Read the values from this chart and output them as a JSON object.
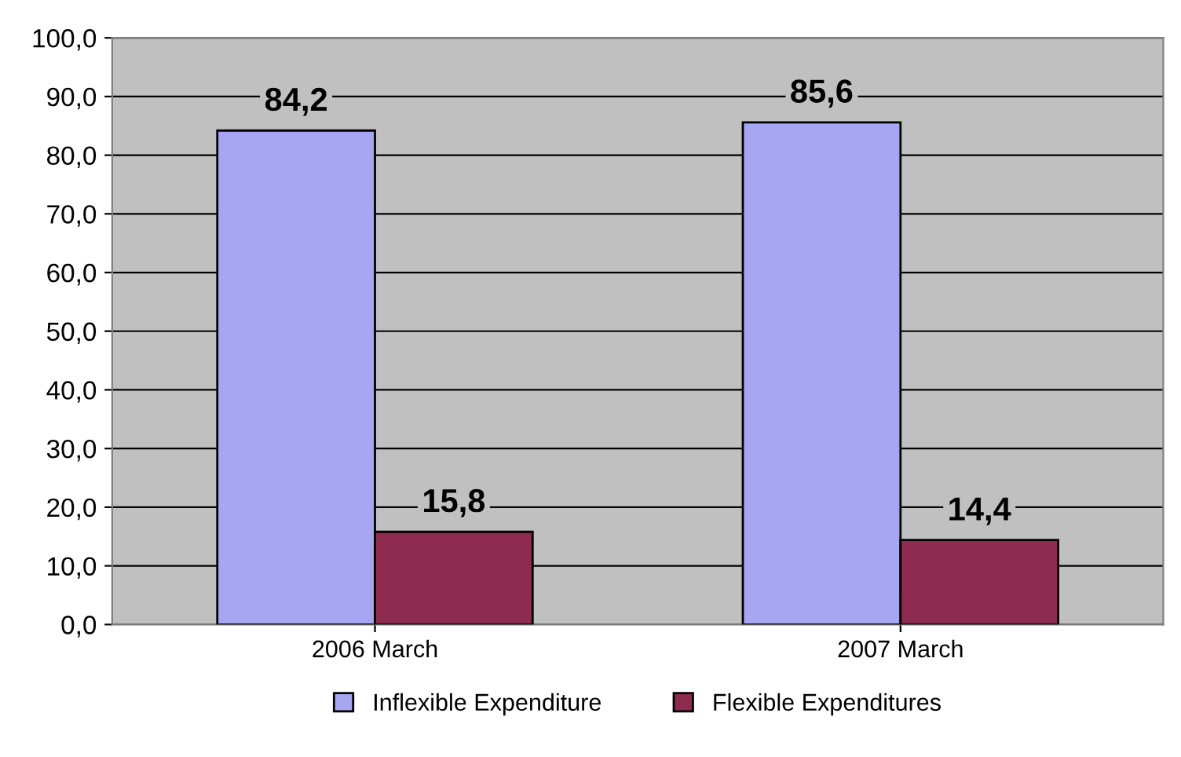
{
  "chart_data": {
    "type": "bar",
    "categories": [
      "2006 March",
      "2007 March"
    ],
    "series": [
      {
        "name": "Inflexible Expenditure",
        "color": "#a6a6f2",
        "values": [
          84.2,
          85.6
        ],
        "value_labels": [
          "84,2",
          "85,6"
        ]
      },
      {
        "name": "Flexible Expenditures",
        "color": "#8e2c50",
        "values": [
          15.8,
          14.4
        ],
        "value_labels": [
          "15,8",
          "14,4"
        ]
      }
    ],
    "ylim": [
      0,
      100
    ],
    "yticks": [
      {
        "value": 0,
        "label": "0,0"
      },
      {
        "value": 10,
        "label": "10,0"
      },
      {
        "value": 20,
        "label": "20,0"
      },
      {
        "value": 30,
        "label": "30,0"
      },
      {
        "value": 40,
        "label": "40,0"
      },
      {
        "value": 50,
        "label": "50,0"
      },
      {
        "value": 60,
        "label": "60,0"
      },
      {
        "value": 70,
        "label": "70,0"
      },
      {
        "value": 80,
        "label": "80,0"
      },
      {
        "value": 90,
        "label": "90,0"
      },
      {
        "value": 100,
        "label": "100,0"
      }
    ],
    "grid": "y",
    "legend": "bottom"
  }
}
